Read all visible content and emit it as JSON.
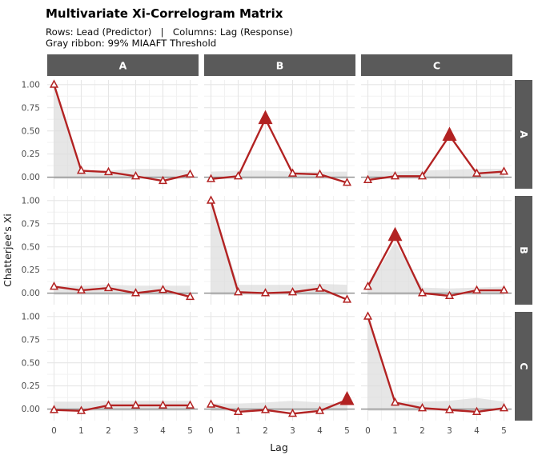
{
  "header": {
    "title": "Multivariate Xi-Correlogram Matrix",
    "subtitle_line1": "Rows: Lead (Predictor)   |   Columns: Lag (Response)",
    "subtitle_line2": "Gray ribbon: 99% MIAAFT Threshold"
  },
  "colors": {
    "line": "#B22222",
    "significant_marker": "#B22222",
    "open_marker_fill": "#FFFFFF",
    "ribbon": "#DCDCDC",
    "strip_bg": "#5A5A5A",
    "strip_text": "#FFFFFF",
    "zero_line": "#8C8C8C",
    "grid_major": "#E6E6E6",
    "grid_minor": "#F2F2F2",
    "tick_text": "#4D4D4D",
    "axis_title_text": "#1A1A1A"
  },
  "chart_data": {
    "type": "line",
    "title": "Multivariate Xi-Correlogram Matrix",
    "subtitle1": "Rows: Lead (Predictor)   |   Columns: Lag (Response)",
    "subtitle2": "Gray ribbon: 99% MIAAFT Threshold",
    "xlabel": "Lag",
    "ylabel": "Chatterjee's Xi",
    "x": [
      0,
      1,
      2,
      3,
      4,
      5
    ],
    "xticks": [
      "0",
      "1",
      "2",
      "3",
      "4",
      "5"
    ],
    "yticks": [
      1.0,
      0.75,
      0.5,
      0.25,
      0.0
    ],
    "ytick_labels": [
      "1.00",
      "0.75",
      "0.50",
      "0.25",
      "0.00"
    ],
    "ylim": [
      -0.125,
      1.05
    ],
    "grid": true,
    "legend_position": "none",
    "facet_rows": [
      "A",
      "B",
      "C"
    ],
    "facet_cols": [
      "A",
      "B",
      "C"
    ],
    "ribbon_meaning": "99% MIAAFT Threshold",
    "panels": [
      {
        "row": "A",
        "col": "A",
        "xi": [
          1.0,
          0.07,
          0.055,
          0.01,
          -0.04,
          0.03
        ],
        "significant": [
          false,
          false,
          false,
          false,
          false,
          false
        ],
        "ribbon_upper": [
          1.0,
          0.07,
          0.07,
          0.09,
          0.09,
          0.07
        ],
        "ribbon_lower": [
          -0.02,
          -0.02,
          -0.02,
          -0.02,
          -0.02,
          -0.02
        ]
      },
      {
        "row": "A",
        "col": "B",
        "xi": [
          -0.02,
          0.01,
          0.63,
          0.04,
          0.03,
          -0.06
        ],
        "significant": [
          false,
          false,
          true,
          false,
          false,
          false
        ],
        "ribbon_upper": [
          0.06,
          0.07,
          0.07,
          0.06,
          0.06,
          0.06
        ],
        "ribbon_lower": [
          -0.02,
          -0.02,
          -0.02,
          -0.02,
          -0.02,
          -0.02
        ]
      },
      {
        "row": "A",
        "col": "C",
        "xi": [
          -0.03,
          0.01,
          0.01,
          0.45,
          0.04,
          0.06
        ],
        "significant": [
          false,
          false,
          false,
          true,
          false,
          false
        ],
        "ribbon_upper": [
          0.07,
          0.06,
          0.07,
          0.08,
          0.09,
          0.09
        ],
        "ribbon_lower": [
          -0.02,
          -0.02,
          -0.02,
          -0.02,
          -0.02,
          -0.02
        ]
      },
      {
        "row": "B",
        "col": "A",
        "xi": [
          0.07,
          0.03,
          0.055,
          0.0,
          0.035,
          -0.04
        ],
        "significant": [
          false,
          false,
          false,
          false,
          false,
          false
        ],
        "ribbon_upper": [
          0.08,
          0.08,
          0.09,
          0.08,
          0.08,
          0.08
        ],
        "ribbon_lower": [
          -0.02,
          -0.02,
          -0.02,
          -0.02,
          -0.02,
          -0.02
        ]
      },
      {
        "row": "B",
        "col": "B",
        "xi": [
          1.0,
          0.01,
          0.0,
          0.01,
          0.05,
          -0.07
        ],
        "significant": [
          false,
          false,
          false,
          false,
          false,
          false
        ],
        "ribbon_upper": [
          1.0,
          0.09,
          0.09,
          0.09,
          0.1,
          0.09
        ],
        "ribbon_lower": [
          -0.02,
          -0.02,
          -0.02,
          -0.02,
          -0.02,
          -0.02
        ]
      },
      {
        "row": "B",
        "col": "C",
        "xi": [
          0.07,
          0.62,
          0.0,
          -0.03,
          0.03,
          0.03
        ],
        "significant": [
          false,
          true,
          false,
          false,
          false,
          false
        ],
        "ribbon_upper": [
          0.07,
          0.55,
          0.06,
          0.05,
          0.06,
          0.07
        ],
        "ribbon_lower": [
          -0.02,
          -0.02,
          -0.02,
          -0.02,
          -0.02,
          -0.02
        ]
      },
      {
        "row": "C",
        "col": "A",
        "xi": [
          -0.01,
          -0.02,
          0.04,
          0.04,
          0.04,
          0.04
        ],
        "significant": [
          false,
          false,
          false,
          false,
          false,
          false
        ],
        "ribbon_upper": [
          0.08,
          0.08,
          0.09,
          0.09,
          0.09,
          0.09
        ],
        "ribbon_lower": [
          -0.02,
          -0.02,
          -0.02,
          -0.02,
          -0.02,
          -0.02
        ]
      },
      {
        "row": "C",
        "col": "B",
        "xi": [
          0.05,
          -0.03,
          -0.01,
          -0.05,
          -0.02,
          0.1
        ],
        "significant": [
          false,
          false,
          false,
          false,
          false,
          true
        ],
        "ribbon_upper": [
          0.06,
          0.06,
          0.07,
          0.09,
          0.07,
          0.05
        ],
        "ribbon_lower": [
          -0.02,
          -0.02,
          -0.02,
          -0.02,
          -0.02,
          -0.02
        ]
      },
      {
        "row": "C",
        "col": "C",
        "xi": [
          1.0,
          0.07,
          0.01,
          -0.01,
          -0.03,
          0.01
        ],
        "significant": [
          false,
          false,
          false,
          false,
          false,
          false
        ],
        "ribbon_upper": [
          1.0,
          0.08,
          0.08,
          0.09,
          0.12,
          0.08
        ],
        "ribbon_lower": [
          -0.02,
          -0.02,
          -0.02,
          -0.02,
          -0.02,
          -0.02
        ]
      }
    ]
  }
}
